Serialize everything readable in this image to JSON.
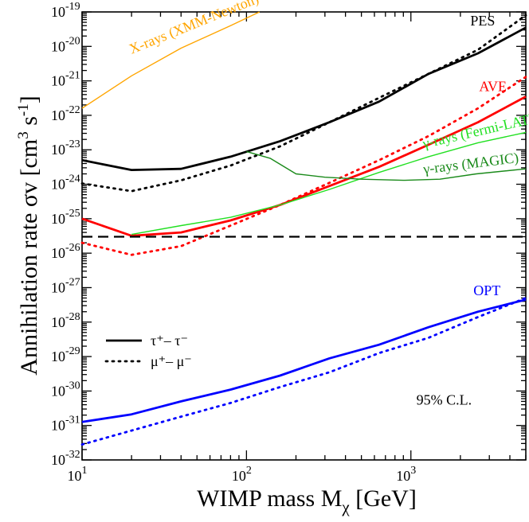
{
  "chart_data": {
    "type": "line",
    "x_scale": "log",
    "y_scale": "log",
    "xlim": [
      10,
      5000
    ],
    "ylim": [
      1e-32,
      1e-19
    ],
    "xlabel": {
      "main": "WIMP mass M",
      "sub": "χ",
      "unit": " [GeV]"
    },
    "ylabel": {
      "main": "Annihilation rate   σv [cm",
      "sup1": "3",
      "mid": " s",
      "sup2": "-1",
      "end": "]"
    },
    "x_ticks": [
      {
        "value": 10,
        "base": "10",
        "exp": "1"
      },
      {
        "value": 100,
        "base": "10",
        "exp": "2"
      },
      {
        "value": 1000,
        "base": "10",
        "exp": "3"
      }
    ],
    "y_ticks": [
      {
        "value": 1e-32,
        "base": "10",
        "exp": "-32"
      },
      {
        "value": 1e-31,
        "base": "10",
        "exp": "-31"
      },
      {
        "value": 1e-30,
        "base": "10",
        "exp": "-30"
      },
      {
        "value": 1e-29,
        "base": "10",
        "exp": "-29"
      },
      {
        "value": 1e-28,
        "base": "10",
        "exp": "-28"
      },
      {
        "value": 1e-27,
        "base": "10",
        "exp": "-27"
      },
      {
        "value": 1e-26,
        "base": "10",
        "exp": "-26"
      },
      {
        "value": 1e-25,
        "base": "10",
        "exp": "-25"
      },
      {
        "value": 1e-24,
        "base": "10",
        "exp": "-24"
      },
      {
        "value": 1e-23,
        "base": "10",
        "exp": "-23"
      },
      {
        "value": 1e-22,
        "base": "10",
        "exp": "-22"
      },
      {
        "value": 1e-21,
        "base": "10",
        "exp": "-21"
      },
      {
        "value": 1e-20,
        "base": "10",
        "exp": "-20"
      },
      {
        "value": 1e-19,
        "base": "10",
        "exp": "-19"
      }
    ],
    "series": [
      {
        "name": "PES tau",
        "color": "#000000",
        "dash": "solid",
        "width": 2.8,
        "points": [
          [
            10,
            5e-24
          ],
          [
            20,
            2.6e-24
          ],
          [
            40,
            2.8e-24
          ],
          [
            80,
            6.3e-24
          ],
          [
            160,
            1.78e-23
          ],
          [
            320,
            6.3e-23
          ],
          [
            640,
            2.5e-22
          ],
          [
            1280,
            1.6e-21
          ],
          [
            2560,
            6.3e-21
          ],
          [
            5000,
            3.5e-20
          ]
        ]
      },
      {
        "name": "PES mu",
        "color": "#000000",
        "dash": "dotted",
        "width": 2.8,
        "points": [
          [
            10,
            1.05e-24
          ],
          [
            20,
            6.3e-25
          ],
          [
            40,
            1.3e-24
          ],
          [
            80,
            3.5e-24
          ],
          [
            160,
            1.26e-23
          ],
          [
            320,
            6.3e-23
          ],
          [
            640,
            3.2e-22
          ],
          [
            1280,
            1.6e-21
          ],
          [
            2560,
            8e-21
          ],
          [
            5000,
            8e-20
          ]
        ]
      },
      {
        "name": "AVE tau",
        "color": "#ff0000",
        "dash": "solid",
        "width": 2.8,
        "points": [
          [
            10,
            1e-25
          ],
          [
            20,
            3.2e-26
          ],
          [
            40,
            4e-26
          ],
          [
            80,
            8.9e-26
          ],
          [
            160,
            2.5e-25
          ],
          [
            320,
            8.9e-25
          ],
          [
            640,
            3.2e-24
          ],
          [
            1280,
            1.4e-23
          ],
          [
            2560,
            6.3e-23
          ],
          [
            5000,
            3.5e-22
          ]
        ]
      },
      {
        "name": "AVE mu",
        "color": "#ff0000",
        "dash": "dotted",
        "width": 2.8,
        "points": [
          [
            10,
            2e-26
          ],
          [
            20,
            8.9e-27
          ],
          [
            40,
            1.6e-26
          ],
          [
            80,
            6.3e-26
          ],
          [
            160,
            2.5e-25
          ],
          [
            320,
            1.1e-24
          ],
          [
            640,
            5e-24
          ],
          [
            1280,
            2.5e-23
          ],
          [
            2560,
            1.6e-22
          ],
          [
            5000,
            1.3e-21
          ]
        ]
      },
      {
        "name": "thermal relic",
        "color": "#000000",
        "dash": "dashed",
        "width": 2.2,
        "points": [
          [
            10,
            3e-26
          ],
          [
            5000,
            3e-26
          ]
        ]
      },
      {
        "name": "OPT tau",
        "color": "#0000ff",
        "dash": "solid",
        "width": 2.8,
        "points": [
          [
            10,
            1.26e-31
          ],
          [
            20,
            2.1e-31
          ],
          [
            40,
            5e-31
          ],
          [
            80,
            1.1e-30
          ],
          [
            160,
            2.8e-30
          ],
          [
            320,
            8.9e-30
          ],
          [
            640,
            2.2e-29
          ],
          [
            1280,
            7.1e-29
          ],
          [
            2560,
            2e-28
          ],
          [
            5000,
            4.5e-28
          ]
        ]
      },
      {
        "name": "OPT mu",
        "color": "#0000ff",
        "dash": "dotted",
        "width": 2.8,
        "points": [
          [
            10,
            2.8e-32
          ],
          [
            20,
            7.1e-32
          ],
          [
            40,
            1.8e-31
          ],
          [
            80,
            4.5e-31
          ],
          [
            160,
            1.3e-30
          ],
          [
            320,
            3.5e-30
          ],
          [
            640,
            1.26e-29
          ],
          [
            1280,
            3.5e-29
          ],
          [
            2560,
            1.4e-28
          ],
          [
            5000,
            5e-28
          ]
        ]
      },
      {
        "name": "X-rays (XMM-Newton)",
        "color": "#ffa500",
        "dash": "solid",
        "width": 1.4,
        "points": [
          [
            10,
            1.6e-22
          ],
          [
            20,
            1.4e-21
          ],
          [
            40,
            8.9e-21
          ],
          [
            80,
            4e-20
          ],
          [
            120,
            1e-19
          ]
        ]
      },
      {
        "name": "γ-rays (Fermi-LAT)",
        "color": "#22e022",
        "dash": "solid",
        "width": 1.4,
        "points": [
          [
            20,
            3.5e-26
          ],
          [
            40,
            6.3e-26
          ],
          [
            80,
            1.1e-25
          ],
          [
            160,
            2.5e-25
          ],
          [
            320,
            7.1e-25
          ],
          [
            640,
            2.2e-24
          ],
          [
            1280,
            6.3e-24
          ],
          [
            2560,
            1.6e-23
          ],
          [
            5000,
            3.2e-23
          ]
        ]
      },
      {
        "name": "γ-rays (MAGIC)",
        "color": "#1a8a1a",
        "dash": "solid",
        "width": 1.4,
        "points": [
          [
            100,
            8.9e-24
          ],
          [
            140,
            5.6e-24
          ],
          [
            200,
            2e-24
          ],
          [
            300,
            1.6e-24
          ],
          [
            500,
            1.4e-24
          ],
          [
            900,
            1.3e-24
          ],
          [
            1500,
            1.4e-24
          ],
          [
            2500,
            2e-24
          ],
          [
            5000,
            2.8e-24
          ]
        ]
      }
    ],
    "annotations": [
      {
        "text": "PES",
        "color": "#000000",
        "x": 2300,
        "y": 4e-20
      },
      {
        "text": "AVE",
        "color": "#ff0000",
        "x": 2600,
        "y": 5e-22
      },
      {
        "text": "OPT",
        "color": "#0000ff",
        "x": 2400,
        "y": 6e-28
      },
      {
        "text": "X-rays (XMM-Newton)",
        "color": "#ffa500",
        "x": 20,
        "y": 6e-21,
        "angle_deg": -22
      },
      {
        "text": "γ-rays (Fermi-LAT)",
        "color": "#22e022",
        "x": 1200,
        "y": 1.1e-23,
        "angle_deg": -13
      },
      {
        "text": "γ-rays (MAGIC)",
        "color": "#1a8a1a",
        "x": 1200,
        "y": 2e-24,
        "angle_deg": -7
      },
      {
        "text": "95% C.L.",
        "color": "#000000",
        "x": 1080,
        "y": 4e-31
      }
    ],
    "legend": [
      {
        "label": "τ⁺– τ⁻",
        "dash": "solid"
      },
      {
        "label": "μ⁺– μ⁻",
        "dash": "dotted"
      }
    ],
    "legend_position": "middle-left"
  }
}
